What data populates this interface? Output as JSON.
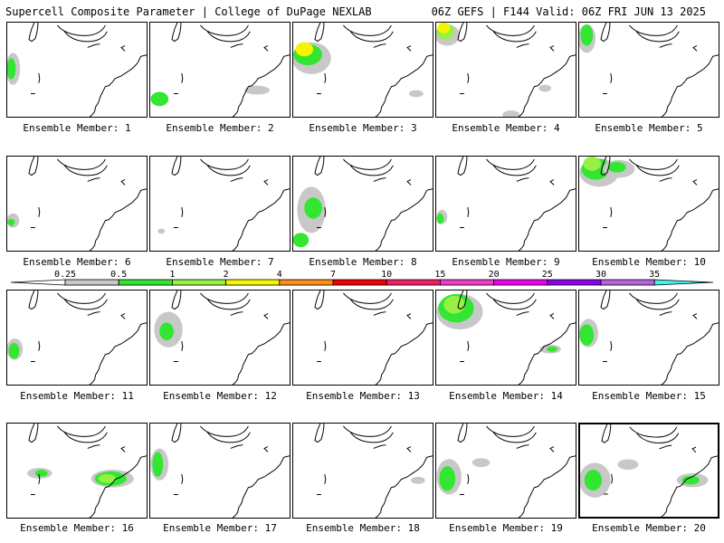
{
  "header": {
    "left": "Supercell Composite Parameter | College of DuPage NEXLAB",
    "right": "06Z GEFS | F144 Valid: 06Z FRI JUN 13 2025"
  },
  "legend": {
    "ticks": [
      "0.25",
      "0.5",
      "1",
      "2",
      "4",
      "7",
      "10",
      "15",
      "20",
      "25",
      "30",
      "35"
    ],
    "colors": [
      "#c8c8c8",
      "#32e632",
      "#96f046",
      "#f5f500",
      "#ff8c14",
      "#f00000",
      "#f01e64",
      "#f03cc8",
      "#f000f0",
      "#8c00e6",
      "#b464dc",
      "#46eef0"
    ]
  },
  "panels": [
    {
      "label": "Ensemble Member: 1"
    },
    {
      "label": "Ensemble Member: 2"
    },
    {
      "label": "Ensemble Member: 3"
    },
    {
      "label": "Ensemble Member: 4"
    },
    {
      "label": "Ensemble Member: 5"
    },
    {
      "label": "Ensemble Member: 6"
    },
    {
      "label": "Ensemble Member: 7"
    },
    {
      "label": "Ensemble Member: 8"
    },
    {
      "label": "Ensemble Member: 9"
    },
    {
      "label": "Ensemble Member: 10"
    },
    {
      "label": "Ensemble Member: 11"
    },
    {
      "label": "Ensemble Member: 12"
    },
    {
      "label": "Ensemble Member: 13"
    },
    {
      "label": "Ensemble Member: 14"
    },
    {
      "label": "Ensemble Member: 15"
    },
    {
      "label": "Ensemble Member: 16"
    },
    {
      "label": "Ensemble Member: 17"
    },
    {
      "label": "Ensemble Member: 18"
    },
    {
      "label": "Ensemble Member: 19"
    },
    {
      "label": "Ensemble Member: 20",
      "highlighted": true
    }
  ]
}
